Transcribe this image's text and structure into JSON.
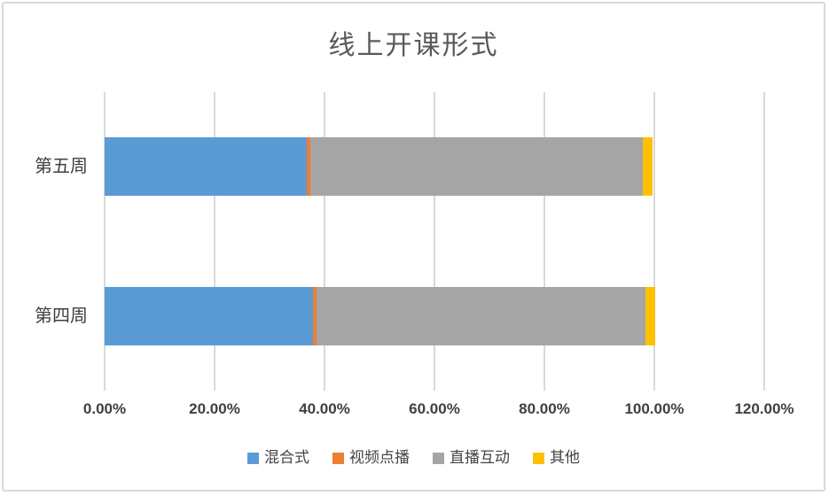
{
  "chart_data": {
    "type": "bar",
    "orientation": "horizontal",
    "stacked": true,
    "title": "线上开课形式",
    "categories": [
      "第五周",
      "第四周"
    ],
    "series": [
      {
        "name": "混合式",
        "color": "#5B9BD5",
        "values": [
          36.8,
          37.9
        ]
      },
      {
        "name": "视频点播",
        "color": "#ED7D31",
        "values": [
          0.6,
          0.6
        ]
      },
      {
        "name": "直播互动",
        "color": "#A5A5A5",
        "values": [
          60.5,
          59.9
        ]
      },
      {
        "name": "其他",
        "color": "#FFC000",
        "values": [
          1.8,
          1.7
        ]
      }
    ],
    "x_axis": {
      "min": 0,
      "max": 120,
      "tick_step": 20,
      "ticks": [
        "0.00%",
        "20.00%",
        "40.00%",
        "60.00%",
        "80.00%",
        "100.00%",
        "120.00%"
      ]
    },
    "grid": true,
    "legend_position": "bottom",
    "colors": {
      "gridline": "#D9D9D9",
      "title_text": "#595959",
      "axis_text": "#404040",
      "border": "#D9D9D9",
      "background": "#FFFFFF"
    }
  }
}
